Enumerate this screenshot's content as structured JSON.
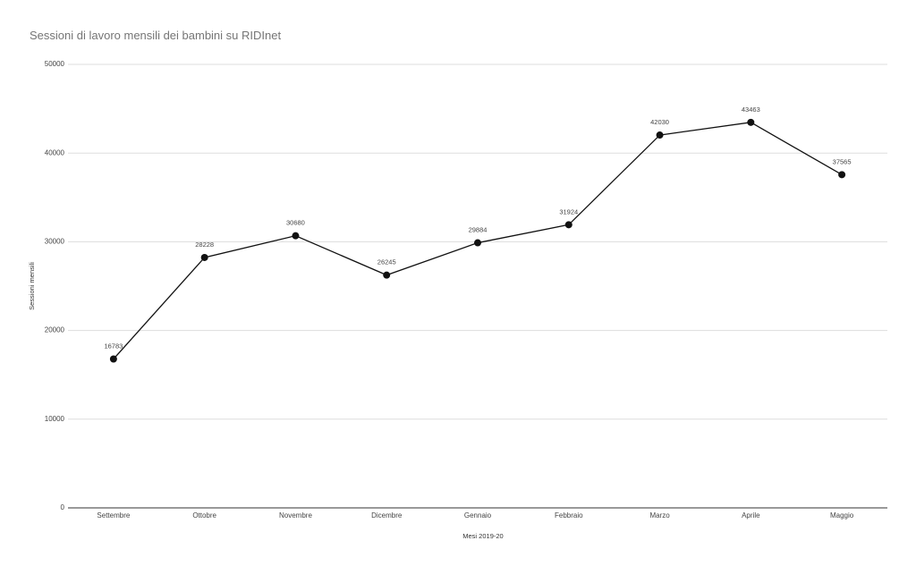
{
  "chart_data": {
    "type": "line",
    "title": "Sessioni di lavoro mensili dei bambini su RIDInet",
    "x_label": "Mesi 2019-20",
    "y_label": "Sessioni mensili",
    "categories": [
      "Settembre",
      "Ottobre",
      "Novembre",
      "Dicembre",
      "Gennaio",
      "Febbraio",
      "Marzo",
      "Aprile",
      "Maggio"
    ],
    "series": [
      {
        "name": "Sessioni mensili",
        "color": "#111111",
        "values": [
          16783,
          28228,
          30680,
          26245,
          29884,
          31924,
          42030,
          43463,
          37565
        ]
      }
    ],
    "ylim": [
      0,
      50000
    ],
    "yticks": [
      0,
      10000,
      20000,
      30000,
      40000,
      50000
    ],
    "grid": true
  }
}
